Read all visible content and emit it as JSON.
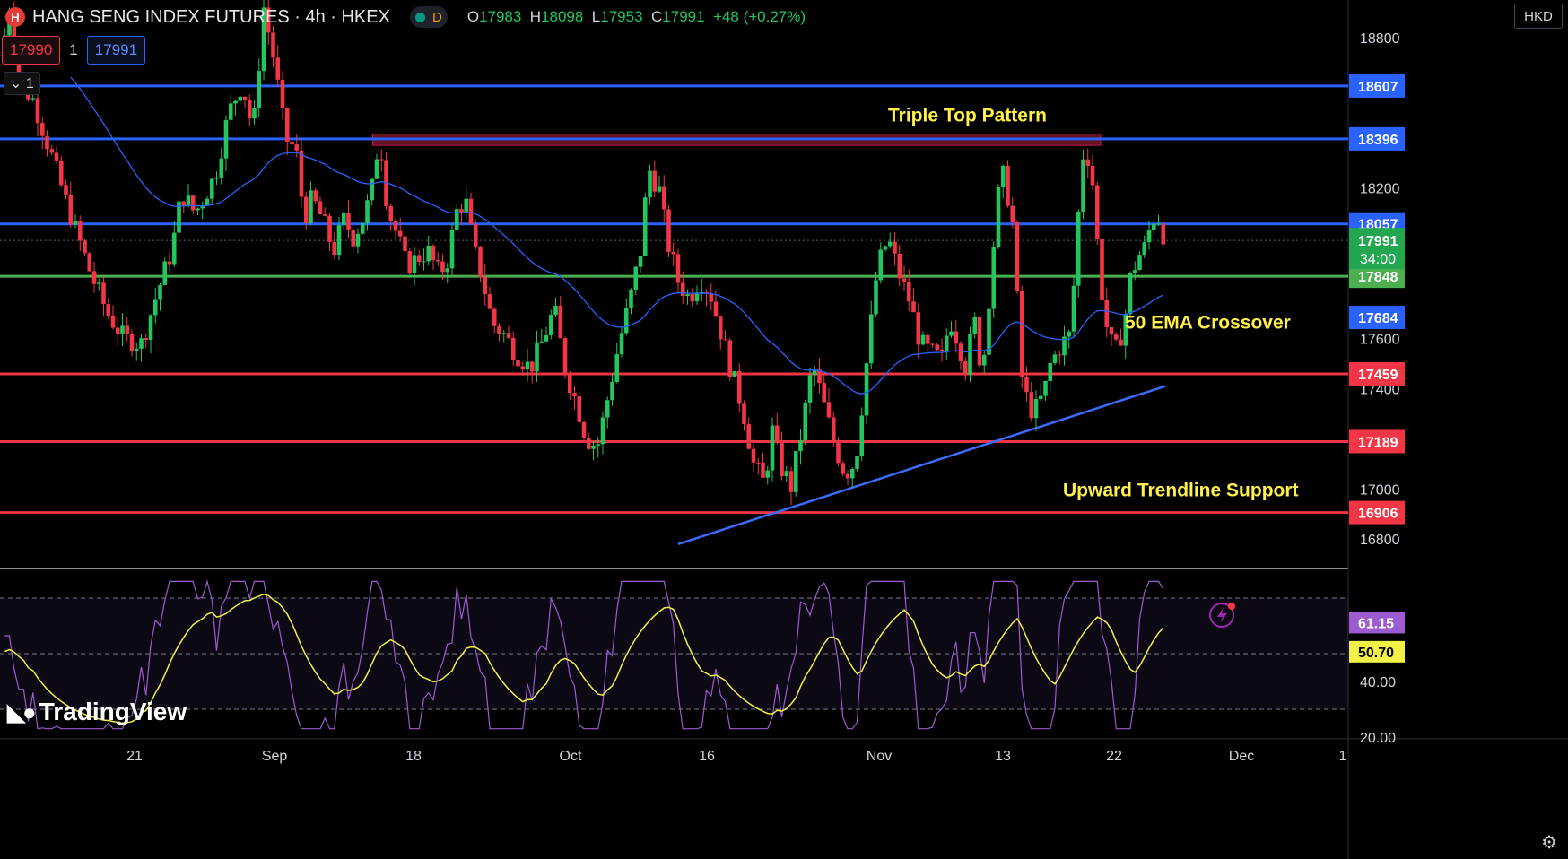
{
  "header": {
    "title": "HANG SENG INDEX FUTURES · 4h · HKEX",
    "logo_glyph": "H",
    "status_letter": "D",
    "open_label": "O",
    "open": "17983",
    "high_label": "H",
    "high": "18098",
    "low_label": "L",
    "low": "17953",
    "close_label": "C",
    "close": "17991",
    "change": "+48 (+0.27%)"
  },
  "trade": {
    "bid": "17990",
    "qty": "1",
    "ask": "17991",
    "lots": "1",
    "lots_icon": "chevron-down-icon"
  },
  "currency": "HKD",
  "watermark": "TradingView",
  "colors": {
    "support": "#f23645",
    "resistance": "#2962ff",
    "green_line": "#4caf50",
    "up": "#22c55e",
    "down": "#f23645",
    "ema": "#2962ff",
    "rsi": "#9c5bd1",
    "rsi_ma": "#f1f148",
    "annotation": "#fff04a"
  },
  "chart_data": {
    "type": "candlestick",
    "symbol": "HANG SENG INDEX FUTURES",
    "interval": "4h",
    "price_axis": {
      "ticks": [
        18800,
        18200,
        17600,
        17400,
        17000,
        16800
      ],
      "range": [
        16690,
        18950
      ]
    },
    "time_axis": {
      "labels": [
        "21",
        "Sep",
        "18",
        "Oct",
        "16",
        "Nov",
        "13",
        "22",
        "Dec",
        "1"
      ],
      "range": [
        0,
        1000
      ]
    },
    "price_levels": [
      {
        "value": 18607,
        "label": "18607",
        "role": "resistance"
      },
      {
        "value": 18396,
        "label": "18396",
        "role": "resistance"
      },
      {
        "value": 18057,
        "label": "18057",
        "role": "resistance"
      },
      {
        "value": 17848,
        "label": "17848",
        "role": "pivot"
      },
      {
        "value": 17459,
        "label": "17459",
        "role": "support"
      },
      {
        "value": 17189,
        "label": "17189",
        "role": "support"
      },
      {
        "value": 16906,
        "label": "16906",
        "role": "support"
      }
    ],
    "last_price": {
      "value": 17991,
      "label": "17991",
      "countdown": "34:00"
    },
    "ema": {
      "period": 50,
      "value": 17684,
      "label": "17684"
    },
    "annotations": [
      {
        "text": "Triple Top Pattern",
        "x": 660,
        "price": 18465
      },
      {
        "text": "50 EMA Crossover",
        "x": 836,
        "price": 17640
      },
      {
        "text": "Upward Trendline Support",
        "x": 790,
        "price": 16970
      }
    ],
    "triple_top_zone": {
      "x0": 277,
      "x1": 818,
      "price_low": 18370,
      "price_high": 18415
    },
    "trendline": {
      "x0": 504,
      "price0": 16780,
      "x1": 866,
      "price1": 17410
    },
    "price_path": [
      [
        0,
        18700
      ],
      [
        8,
        18950
      ],
      [
        15,
        18620
      ],
      [
        25,
        18550
      ],
      [
        40,
        18300
      ],
      [
        55,
        18050
      ],
      [
        68,
        17850
      ],
      [
        80,
        17700
      ],
      [
        92,
        17600
      ],
      [
        105,
        17580
      ],
      [
        118,
        17800
      ],
      [
        128,
        17960
      ],
      [
        135,
        18180
      ],
      [
        145,
        18100
      ],
      [
        160,
        18250
      ],
      [
        170,
        18500
      ],
      [
        180,
        18620
      ],
      [
        188,
        18420
      ],
      [
        196,
        18920
      ],
      [
        204,
        18700
      ],
      [
        212,
        18400
      ],
      [
        220,
        18350
      ],
      [
        226,
        18080
      ],
      [
        232,
        18160
      ],
      [
        240,
        18070
      ],
      [
        248,
        17950
      ],
      [
        256,
        18080
      ],
      [
        262,
        18000
      ],
      [
        270,
        18080
      ],
      [
        276,
        18180
      ],
      [
        282,
        18420
      ],
      [
        288,
        18120
      ],
      [
        296,
        18000
      ],
      [
        302,
        17890
      ],
      [
        310,
        17920
      ],
      [
        318,
        17950
      ],
      [
        326,
        17860
      ],
      [
        332,
        17900
      ],
      [
        340,
        18120
      ],
      [
        346,
        18150
      ],
      [
        352,
        17960
      ],
      [
        358,
        17850
      ],
      [
        366,
        17660
      ],
      [
        374,
        17620
      ],
      [
        384,
        17540
      ],
      [
        394,
        17480
      ],
      [
        404,
        17600
      ],
      [
        412,
        17720
      ],
      [
        420,
        17480
      ],
      [
        428,
        17350
      ],
      [
        436,
        17200
      ],
      [
        444,
        17170
      ],
      [
        452,
        17370
      ],
      [
        460,
        17580
      ],
      [
        468,
        17750
      ],
      [
        476,
        17950
      ],
      [
        482,
        18280
      ],
      [
        490,
        18190
      ],
      [
        496,
        17990
      ],
      [
        504,
        17830
      ],
      [
        512,
        17760
      ],
      [
        520,
        17840
      ],
      [
        528,
        17780
      ],
      [
        536,
        17620
      ],
      [
        544,
        17460
      ],
      [
        552,
        17320
      ],
      [
        560,
        17100
      ],
      [
        568,
        17020
      ],
      [
        574,
        17230
      ],
      [
        580,
        17090
      ],
      [
        588,
        17010
      ],
      [
        596,
        17240
      ],
      [
        604,
        17500
      ],
      [
        612,
        17340
      ],
      [
        620,
        17180
      ],
      [
        628,
        17060
      ],
      [
        636,
        17110
      ],
      [
        644,
        17500
      ],
      [
        652,
        17880
      ],
      [
        660,
        18000
      ],
      [
        668,
        17860
      ],
      [
        676,
        17750
      ],
      [
        684,
        17580
      ],
      [
        692,
        17540
      ],
      [
        700,
        17520
      ],
      [
        706,
        17680
      ],
      [
        712,
        17590
      ],
      [
        718,
        17480
      ],
      [
        724,
        17680
      ],
      [
        730,
        17450
      ],
      [
        738,
        17950
      ],
      [
        744,
        18280
      ],
      [
        752,
        18100
      ],
      [
        760,
        17400
      ],
      [
        768,
        17300
      ],
      [
        776,
        17380
      ],
      [
        780,
        17490
      ],
      [
        788,
        17570
      ],
      [
        796,
        17620
      ],
      [
        800,
        18000
      ],
      [
        806,
        18400
      ],
      [
        812,
        18220
      ],
      [
        818,
        17820
      ],
      [
        824,
        17590
      ],
      [
        830,
        17550
      ],
      [
        836,
        17680
      ],
      [
        840,
        17840
      ],
      [
        846,
        17930
      ],
      [
        850,
        17950
      ],
      [
        856,
        18070
      ],
      [
        860,
        18098
      ],
      [
        866,
        17991
      ]
    ],
    "rsi_panel": {
      "ticks": [
        40.0,
        20.0
      ],
      "range": [
        20,
        80
      ],
      "bands": [
        30,
        50,
        70
      ],
      "rsi_label": "61.15",
      "rsi_value": 61.15,
      "ma_label": "50.70",
      "ma_value": 50.7
    }
  }
}
